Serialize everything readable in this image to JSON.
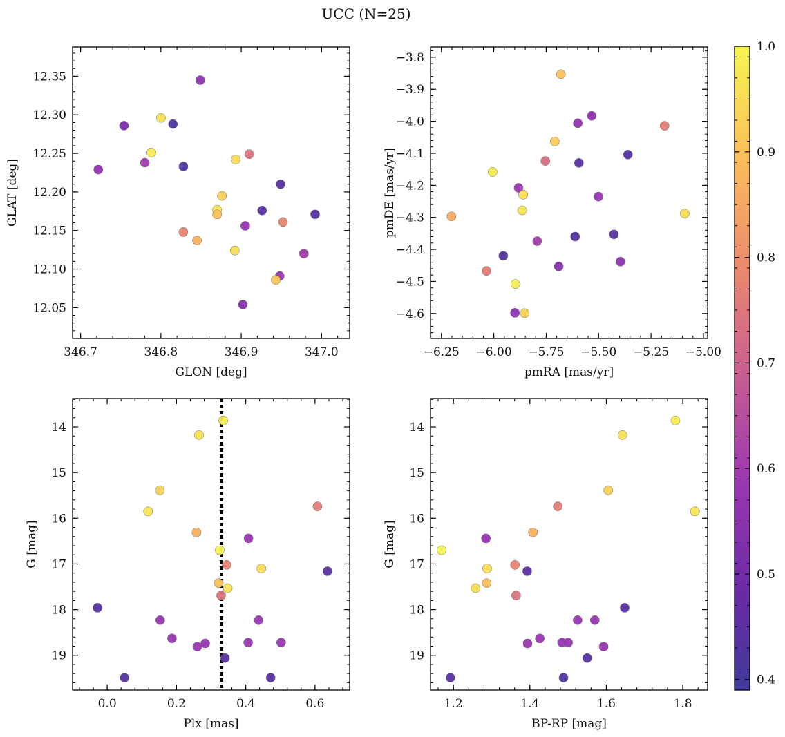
{
  "figure": {
    "title": "UCC (N=25)"
  },
  "colorbar": {
    "cmap": "plasma",
    "range": [
      0.39,
      1.0
    ],
    "ticks": [
      "0.4",
      "0.5",
      "0.6",
      "0.7",
      "0.8",
      "0.9",
      "1.0"
    ],
    "tick_values": [
      0.4,
      0.5,
      0.6,
      0.7,
      0.8,
      0.9,
      1.0
    ]
  },
  "chart_data": [
    {
      "type": "scatter",
      "title": "",
      "xlabel": "GLON [deg]",
      "ylabel": "GLAT [deg]",
      "xlim": [
        346.69,
        347.035
      ],
      "ylim": [
        12.01,
        12.388
      ],
      "xticks": [
        346.7,
        346.8,
        346.9,
        347.0
      ],
      "xtick_labels": [
        "346.7",
        "346.8",
        "346.9",
        "347.0"
      ],
      "yticks": [
        12.05,
        12.1,
        12.15,
        12.2,
        12.25,
        12.3,
        12.35
      ],
      "ytick_labels": [
        "12.05",
        "12.10",
        "12.15",
        "12.20",
        "12.25",
        "12.30",
        "12.35"
      ],
      "points": [
        {
          "x": 346.849,
          "y": 12.345,
          "c": 0.56
        },
        {
          "x": 346.754,
          "y": 12.286,
          "c": 0.52
        },
        {
          "x": 346.8,
          "y": 12.296,
          "c": 0.96
        },
        {
          "x": 346.815,
          "y": 12.288,
          "c": 0.42
        },
        {
          "x": 346.788,
          "y": 12.251,
          "c": 0.98
        },
        {
          "x": 346.722,
          "y": 12.229,
          "c": 0.57
        },
        {
          "x": 346.78,
          "y": 12.238,
          "c": 0.6
        },
        {
          "x": 346.828,
          "y": 12.233,
          "c": 0.42
        },
        {
          "x": 346.91,
          "y": 12.249,
          "c": 0.74
        },
        {
          "x": 346.893,
          "y": 12.242,
          "c": 0.95
        },
        {
          "x": 346.949,
          "y": 12.21,
          "c": 0.44
        },
        {
          "x": 346.876,
          "y": 12.195,
          "c": 0.93
        },
        {
          "x": 346.87,
          "y": 12.177,
          "c": 0.97
        },
        {
          "x": 346.87,
          "y": 12.171,
          "c": 0.9
        },
        {
          "x": 346.926,
          "y": 12.176,
          "c": 0.45
        },
        {
          "x": 346.992,
          "y": 12.171,
          "c": 0.43
        },
        {
          "x": 346.952,
          "y": 12.161,
          "c": 0.78
        },
        {
          "x": 346.905,
          "y": 12.156,
          "c": 0.58
        },
        {
          "x": 346.828,
          "y": 12.148,
          "c": 0.78
        },
        {
          "x": 346.845,
          "y": 12.137,
          "c": 0.87
        },
        {
          "x": 346.892,
          "y": 12.124,
          "c": 0.95
        },
        {
          "x": 346.978,
          "y": 12.12,
          "c": 0.6
        },
        {
          "x": 346.948,
          "y": 12.091,
          "c": 0.58
        },
        {
          "x": 346.943,
          "y": 12.086,
          "c": 0.91
        },
        {
          "x": 346.902,
          "y": 12.054,
          "c": 0.55
        }
      ]
    },
    {
      "type": "scatter",
      "title": "",
      "xlabel": "pmRA [mas/yr]",
      "ylabel": "pmDE [mas/yr]",
      "xlim": [
        -6.302,
        -4.98
      ],
      "ylim": [
        -4.678,
        -3.768
      ],
      "xticks": [
        -6.25,
        -6.0,
        -5.75,
        -5.5,
        -5.25,
        -5.0
      ],
      "xtick_labels": [
        "−6.25",
        "−6.00",
        "−5.75",
        "−5.50",
        "−5.25",
        "−5.00"
      ],
      "yticks": [
        -4.6,
        -4.5,
        -4.4,
        -4.3,
        -4.2,
        -4.1,
        -4.0,
        -3.9,
        -3.8
      ],
      "ytick_labels": [
        "−4.6",
        "−4.5",
        "−4.4",
        "−4.3",
        "−4.2",
        "−4.1",
        "−4.0",
        "−3.9",
        "−3.8"
      ],
      "points": [
        {
          "x": -5.68,
          "y": -3.853,
          "c": 0.9
        },
        {
          "x": -5.533,
          "y": -3.983,
          "c": 0.56
        },
        {
          "x": -5.599,
          "y": -4.006,
          "c": 0.57
        },
        {
          "x": -5.185,
          "y": -4.014,
          "c": 0.76
        },
        {
          "x": -5.709,
          "y": -4.063,
          "c": 0.92
        },
        {
          "x": -5.36,
          "y": -4.104,
          "c": 0.44
        },
        {
          "x": -5.754,
          "y": -4.124,
          "c": 0.73
        },
        {
          "x": -5.594,
          "y": -4.13,
          "c": 0.44
        },
        {
          "x": -6.006,
          "y": -4.158,
          "c": 0.98
        },
        {
          "x": -5.882,
          "y": -4.208,
          "c": 0.58
        },
        {
          "x": -5.86,
          "y": -4.229,
          "c": 0.95
        },
        {
          "x": -5.501,
          "y": -4.235,
          "c": 0.58
        },
        {
          "x": -5.865,
          "y": -4.278,
          "c": 0.97
        },
        {
          "x": -6.202,
          "y": -4.297,
          "c": 0.86
        },
        {
          "x": -5.089,
          "y": -4.288,
          "c": 0.95
        },
        {
          "x": -5.427,
          "y": -4.353,
          "c": 0.44
        },
        {
          "x": -5.612,
          "y": -4.36,
          "c": 0.44
        },
        {
          "x": -5.793,
          "y": -4.374,
          "c": 0.6
        },
        {
          "x": -5.955,
          "y": -4.42,
          "c": 0.43
        },
        {
          "x": -5.396,
          "y": -4.438,
          "c": 0.55
        },
        {
          "x": -5.69,
          "y": -4.453,
          "c": 0.54
        },
        {
          "x": -6.035,
          "y": -4.467,
          "c": 0.76
        },
        {
          "x": -5.897,
          "y": -4.508,
          "c": 0.98
        },
        {
          "x": -5.899,
          "y": -4.598,
          "c": 0.55
        },
        {
          "x": -5.853,
          "y": -4.599,
          "c": 0.93
        }
      ]
    },
    {
      "type": "scatter",
      "title": "",
      "xlabel": "Plx [mas]",
      "ylabel": "G [mag]",
      "xlim": [
        -0.1,
        0.7
      ],
      "ylim": [
        19.76,
        13.38
      ],
      "y_inverted": true,
      "xticks": [
        0.0,
        0.2,
        0.4,
        0.6
      ],
      "xtick_labels": [
        "0.0",
        "0.2",
        "0.4",
        "0.6"
      ],
      "yticks": [
        14,
        15,
        16,
        17,
        18,
        19
      ],
      "ytick_labels": [
        "14",
        "15",
        "16",
        "17",
        "18",
        "19"
      ],
      "reference_line": {
        "orientation": "vertical",
        "x": 0.33,
        "style": "dotted",
        "color": "#000000"
      },
      "points": [
        {
          "x": 0.335,
          "y": 13.86,
          "c": 0.98
        },
        {
          "x": 0.265,
          "y": 14.18,
          "c": 0.96
        },
        {
          "x": 0.152,
          "y": 15.39,
          "c": 0.93
        },
        {
          "x": 0.118,
          "y": 15.85,
          "c": 0.97
        },
        {
          "x": 0.607,
          "y": 15.74,
          "c": 0.76
        },
        {
          "x": 0.258,
          "y": 16.31,
          "c": 0.87
        },
        {
          "x": 0.408,
          "y": 16.44,
          "c": 0.57
        },
        {
          "x": 0.325,
          "y": 16.7,
          "c": 1.0
        },
        {
          "x": 0.345,
          "y": 17.02,
          "c": 0.78
        },
        {
          "x": 0.445,
          "y": 17.1,
          "c": 0.95
        },
        {
          "x": 0.636,
          "y": 17.16,
          "c": 0.45
        },
        {
          "x": 0.322,
          "y": 17.42,
          "c": 0.9
        },
        {
          "x": 0.348,
          "y": 17.53,
          "c": 0.96
        },
        {
          "x": 0.329,
          "y": 17.69,
          "c": 0.74
        },
        {
          "x": -0.028,
          "y": 17.96,
          "c": 0.44
        },
        {
          "x": 0.153,
          "y": 18.23,
          "c": 0.58
        },
        {
          "x": 0.437,
          "y": 18.23,
          "c": 0.58
        },
        {
          "x": 0.187,
          "y": 18.63,
          "c": 0.58
        },
        {
          "x": 0.283,
          "y": 18.74,
          "c": 0.58
        },
        {
          "x": 0.407,
          "y": 18.72,
          "c": 0.58
        },
        {
          "x": 0.502,
          "y": 18.72,
          "c": 0.58
        },
        {
          "x": 0.26,
          "y": 18.81,
          "c": 0.58
        },
        {
          "x": 0.34,
          "y": 19.06,
          "c": 0.44
        },
        {
          "x": 0.05,
          "y": 19.49,
          "c": 0.44
        },
        {
          "x": 0.472,
          "y": 19.49,
          "c": 0.44
        }
      ]
    },
    {
      "type": "scatter",
      "title": "",
      "xlabel": "BP-RP [mag]",
      "ylabel": "G [mag]",
      "xlim": [
        1.14,
        1.865
      ],
      "ylim": [
        19.76,
        13.38
      ],
      "y_inverted": true,
      "xticks": [
        1.2,
        1.4,
        1.6,
        1.8
      ],
      "xtick_labels": [
        "1.2",
        "1.4",
        "1.6",
        "1.8"
      ],
      "yticks": [
        14,
        15,
        16,
        17,
        18,
        19
      ],
      "ytick_labels": [
        "14",
        "15",
        "16",
        "17",
        "18",
        "19"
      ],
      "points": [
        {
          "x": 1.781,
          "y": 13.86,
          "c": 0.98
        },
        {
          "x": 1.642,
          "y": 14.18,
          "c": 0.96
        },
        {
          "x": 1.605,
          "y": 15.39,
          "c": 0.93
        },
        {
          "x": 1.832,
          "y": 15.85,
          "c": 0.97
        },
        {
          "x": 1.473,
          "y": 15.74,
          "c": 0.76
        },
        {
          "x": 1.408,
          "y": 16.31,
          "c": 0.87
        },
        {
          "x": 1.285,
          "y": 16.44,
          "c": 0.57
        },
        {
          "x": 1.169,
          "y": 16.7,
          "c": 1.0
        },
        {
          "x": 1.361,
          "y": 17.02,
          "c": 0.78
        },
        {
          "x": 1.288,
          "y": 17.1,
          "c": 0.95
        },
        {
          "x": 1.393,
          "y": 17.16,
          "c": 0.45
        },
        {
          "x": 1.287,
          "y": 17.42,
          "c": 0.9
        },
        {
          "x": 1.258,
          "y": 17.53,
          "c": 0.96
        },
        {
          "x": 1.364,
          "y": 17.69,
          "c": 0.74
        },
        {
          "x": 1.648,
          "y": 17.96,
          "c": 0.44
        },
        {
          "x": 1.525,
          "y": 18.23,
          "c": 0.58
        },
        {
          "x": 1.57,
          "y": 18.23,
          "c": 0.58
        },
        {
          "x": 1.426,
          "y": 18.63,
          "c": 0.58
        },
        {
          "x": 1.394,
          "y": 18.74,
          "c": 0.58
        },
        {
          "x": 1.484,
          "y": 18.72,
          "c": 0.58
        },
        {
          "x": 1.5,
          "y": 18.72,
          "c": 0.58
        },
        {
          "x": 1.593,
          "y": 18.81,
          "c": 0.58
        },
        {
          "x": 1.55,
          "y": 19.06,
          "c": 0.44
        },
        {
          "x": 1.192,
          "y": 19.49,
          "c": 0.44
        },
        {
          "x": 1.488,
          "y": 19.49,
          "c": 0.44
        }
      ]
    }
  ]
}
